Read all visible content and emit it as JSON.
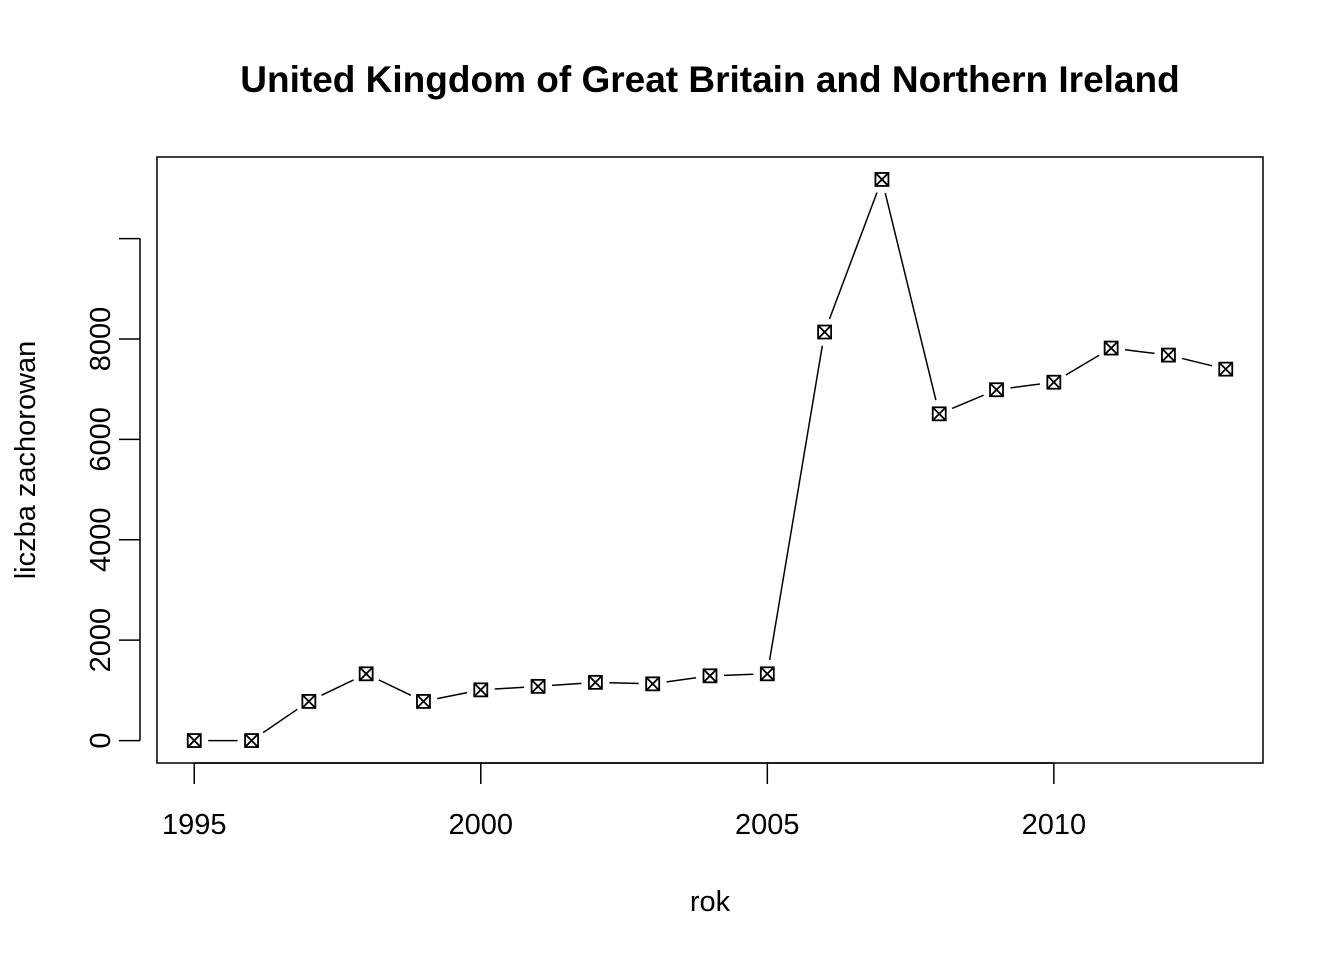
{
  "chart_data": {
    "type": "line",
    "title": "United Kingdom of Great Britain and Northern Ireland",
    "xlabel": "rok",
    "ylabel": "liczba zachorowan",
    "x": [
      1995,
      1996,
      1997,
      1998,
      1999,
      2000,
      2001,
      2002,
      2003,
      2004,
      2005,
      2006,
      2007,
      2008,
      2009,
      2010,
      2011,
      2012,
      2013
    ],
    "series": [
      {
        "values": [
          0,
          0,
          780,
          1330,
          780,
          1010,
          1080,
          1160,
          1130,
          1290,
          1330,
          8140,
          11180,
          6510,
          6990,
          7140,
          7820,
          7680,
          7400
        ]
      }
    ],
    "xlim": [
      1994.35,
      2013.65
    ],
    "ylim": [
      -447,
      11627
    ],
    "x_ticks": [
      1995,
      2000,
      2005,
      2010
    ],
    "y_ticks": [
      0,
      2000,
      4000,
      6000,
      8000,
      10000
    ],
    "y_tick_labels": [
      "0",
      "2000",
      "4000",
      "6000",
      "8000",
      ""
    ],
    "marker": "boxed-x",
    "line_style": "solid, gapped around markers",
    "grid": false,
    "legend": "none",
    "colors": {
      "line": "#000000",
      "background": "#ffffff"
    }
  }
}
